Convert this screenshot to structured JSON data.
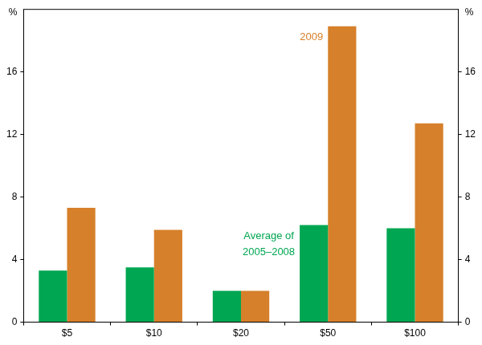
{
  "chart_data": {
    "type": "bar",
    "ylabel": "%",
    "categories": [
      "$5",
      "$10",
      "$20",
      "$50",
      "$100"
    ],
    "series": [
      {
        "name": "Average of 2005–2008",
        "color": "#00a651",
        "values": [
          3.3,
          3.5,
          2.0,
          6.2,
          6.0
        ]
      },
      {
        "name": "2009",
        "color": "#d6802b",
        "values": [
          7.3,
          5.9,
          2.0,
          18.9,
          12.7
        ]
      }
    ],
    "ylim": [
      0,
      20
    ],
    "yticks": [
      0,
      4,
      8,
      12,
      16
    ],
    "grid": false
  }
}
